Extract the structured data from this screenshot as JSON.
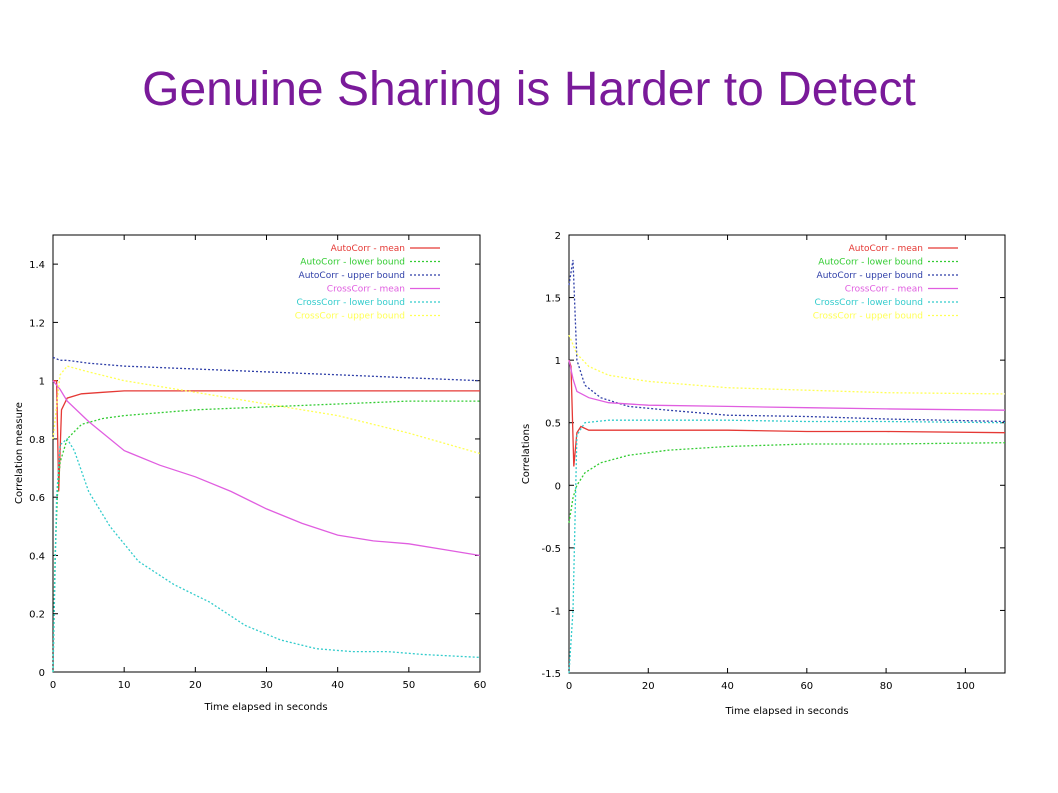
{
  "slide": {
    "title": "Genuine Sharing is Harder to Detect"
  },
  "chart_data": [
    {
      "type": "line",
      "xlabel": "Time elapsed in seconds",
      "ylabel": "Correlation measure",
      "xlim": [
        0,
        60
      ],
      "ylim": [
        0,
        1.5
      ],
      "xticks": [
        0,
        10,
        20,
        30,
        40,
        50,
        60
      ],
      "yticks": [
        0,
        0.2,
        0.4,
        0.6,
        0.8,
        1,
        1.2,
        1.4
      ],
      "legend_position": "top-right",
      "grid": false,
      "series": [
        {
          "name": "AutoCorr - mean",
          "color": "#e53935",
          "dash": "solid",
          "points": [
            [
              0,
              1.0
            ],
            [
              0.5,
              1.0
            ],
            [
              0.8,
              0.62
            ],
            [
              1.2,
              0.9
            ],
            [
              2,
              0.94
            ],
            [
              4,
              0.955
            ],
            [
              7,
              0.96
            ],
            [
              10,
              0.965
            ],
            [
              20,
              0.965
            ],
            [
              40,
              0.965
            ],
            [
              60,
              0.965
            ]
          ]
        },
        {
          "name": "AutoCorr - lower bound",
          "color": "#33cc33",
          "dash": "dotted",
          "points": [
            [
              0,
              0.0
            ],
            [
              0.3,
              0.4
            ],
            [
              0.6,
              0.6
            ],
            [
              1,
              0.72
            ],
            [
              2,
              0.8
            ],
            [
              4,
              0.85
            ],
            [
              7,
              0.87
            ],
            [
              10,
              0.88
            ],
            [
              20,
              0.9
            ],
            [
              30,
              0.91
            ],
            [
              40,
              0.92
            ],
            [
              50,
              0.93
            ],
            [
              60,
              0.93
            ]
          ]
        },
        {
          "name": "AutoCorr - upper bound",
          "color": "#2f3fa8",
          "dash": "dotted",
          "points": [
            [
              0,
              1.08
            ],
            [
              1,
              1.07
            ],
            [
              2,
              1.07
            ],
            [
              5,
              1.06
            ],
            [
              10,
              1.05
            ],
            [
              20,
              1.04
            ],
            [
              30,
              1.03
            ],
            [
              40,
              1.02
            ],
            [
              50,
              1.01
            ],
            [
              60,
              1.0
            ]
          ]
        },
        {
          "name": "CrossCorr - mean",
          "color": "#e05ee0",
          "dash": "solid",
          "points": [
            [
              0,
              1.0
            ],
            [
              1,
              0.97
            ],
            [
              2,
              0.93
            ],
            [
              5,
              0.86
            ],
            [
              10,
              0.76
            ],
            [
              15,
              0.71
            ],
            [
              20,
              0.67
            ],
            [
              25,
              0.62
            ],
            [
              30,
              0.56
            ],
            [
              35,
              0.51
            ],
            [
              40,
              0.47
            ],
            [
              45,
              0.45
            ],
            [
              50,
              0.44
            ],
            [
              55,
              0.42
            ],
            [
              60,
              0.4
            ]
          ]
        },
        {
          "name": "CrossCorr - lower bound",
          "color": "#33cccc",
          "dash": "dotted",
          "points": [
            [
              0,
              0.0
            ],
            [
              0.5,
              0.6
            ],
            [
              1,
              0.78
            ],
            [
              2,
              0.8
            ],
            [
              3,
              0.76
            ],
            [
              5,
              0.62
            ],
            [
              8,
              0.5
            ],
            [
              12,
              0.38
            ],
            [
              17,
              0.3
            ],
            [
              22,
              0.24
            ],
            [
              27,
              0.16
            ],
            [
              32,
              0.11
            ],
            [
              37,
              0.08
            ],
            [
              42,
              0.07
            ],
            [
              47,
              0.07
            ],
            [
              52,
              0.06
            ],
            [
              60,
              0.05
            ]
          ]
        },
        {
          "name": "CrossCorr - upper bound",
          "color": "#ffff55",
          "dash": "dotted",
          "points": [
            [
              0,
              0.8
            ],
            [
              1,
              1.02
            ],
            [
              2,
              1.05
            ],
            [
              5,
              1.03
            ],
            [
              10,
              1.0
            ],
            [
              20,
              0.96
            ],
            [
              30,
              0.92
            ],
            [
              40,
              0.88
            ],
            [
              50,
              0.82
            ],
            [
              60,
              0.75
            ]
          ]
        }
      ]
    },
    {
      "type": "line",
      "xlabel": "Time elapsed in seconds",
      "ylabel": "Correlations",
      "xlim": [
        0,
        110
      ],
      "ylim": [
        -1.5,
        2
      ],
      "xticks": [
        0,
        20,
        40,
        60,
        80,
        100
      ],
      "yticks": [
        -1.5,
        -1,
        -0.5,
        0,
        0.5,
        1,
        1.5,
        2
      ],
      "legend_position": "top-right",
      "grid": false,
      "series": [
        {
          "name": "AutoCorr - mean",
          "color": "#e53935",
          "dash": "solid",
          "points": [
            [
              0,
              1.0
            ],
            [
              0.5,
              0.95
            ],
            [
              1.2,
              0.15
            ],
            [
              2,
              0.42
            ],
            [
              3,
              0.47
            ],
            [
              5,
              0.44
            ],
            [
              10,
              0.44
            ],
            [
              20,
              0.44
            ],
            [
              40,
              0.44
            ],
            [
              60,
              0.43
            ],
            [
              80,
              0.43
            ],
            [
              110,
              0.42
            ]
          ]
        },
        {
          "name": "AutoCorr - lower bound",
          "color": "#33cc33",
          "dash": "dotted",
          "points": [
            [
              0,
              -0.3
            ],
            [
              1,
              -0.1
            ],
            [
              2,
              0.0
            ],
            [
              4,
              0.1
            ],
            [
              8,
              0.18
            ],
            [
              15,
              0.24
            ],
            [
              25,
              0.28
            ],
            [
              40,
              0.31
            ],
            [
              60,
              0.33
            ],
            [
              80,
              0.33
            ],
            [
              110,
              0.34
            ]
          ]
        },
        {
          "name": "AutoCorr - upper bound",
          "color": "#2f3fa8",
          "dash": "dotted",
          "points": [
            [
              0,
              1.6
            ],
            [
              1,
              1.8
            ],
            [
              2,
              1.0
            ],
            [
              4,
              0.8
            ],
            [
              8,
              0.7
            ],
            [
              15,
              0.63
            ],
            [
              25,
              0.6
            ],
            [
              40,
              0.56
            ],
            [
              60,
              0.55
            ],
            [
              80,
              0.53
            ],
            [
              110,
              0.51
            ]
          ]
        },
        {
          "name": "CrossCorr - mean",
          "color": "#e05ee0",
          "dash": "solid",
          "points": [
            [
              0,
              1.0
            ],
            [
              1,
              0.85
            ],
            [
              2,
              0.75
            ],
            [
              5,
              0.7
            ],
            [
              10,
              0.66
            ],
            [
              20,
              0.64
            ],
            [
              40,
              0.63
            ],
            [
              60,
              0.62
            ],
            [
              80,
              0.61
            ],
            [
              110,
              0.6
            ]
          ]
        },
        {
          "name": "CrossCorr - lower bound",
          "color": "#33cccc",
          "dash": "dotted",
          "points": [
            [
              0,
              -1.5
            ],
            [
              1,
              -1.0
            ],
            [
              2,
              0.4
            ],
            [
              4,
              0.5
            ],
            [
              10,
              0.52
            ],
            [
              20,
              0.52
            ],
            [
              40,
              0.52
            ],
            [
              60,
              0.51
            ],
            [
              80,
              0.51
            ],
            [
              110,
              0.5
            ]
          ]
        },
        {
          "name": "CrossCorr - upper bound",
          "color": "#ffff55",
          "dash": "dotted",
          "points": [
            [
              0,
              1.2
            ],
            [
              2,
              1.05
            ],
            [
              5,
              0.95
            ],
            [
              10,
              0.88
            ],
            [
              20,
              0.83
            ],
            [
              40,
              0.78
            ],
            [
              60,
              0.76
            ],
            [
              80,
              0.74
            ],
            [
              110,
              0.73
            ]
          ]
        }
      ]
    }
  ]
}
